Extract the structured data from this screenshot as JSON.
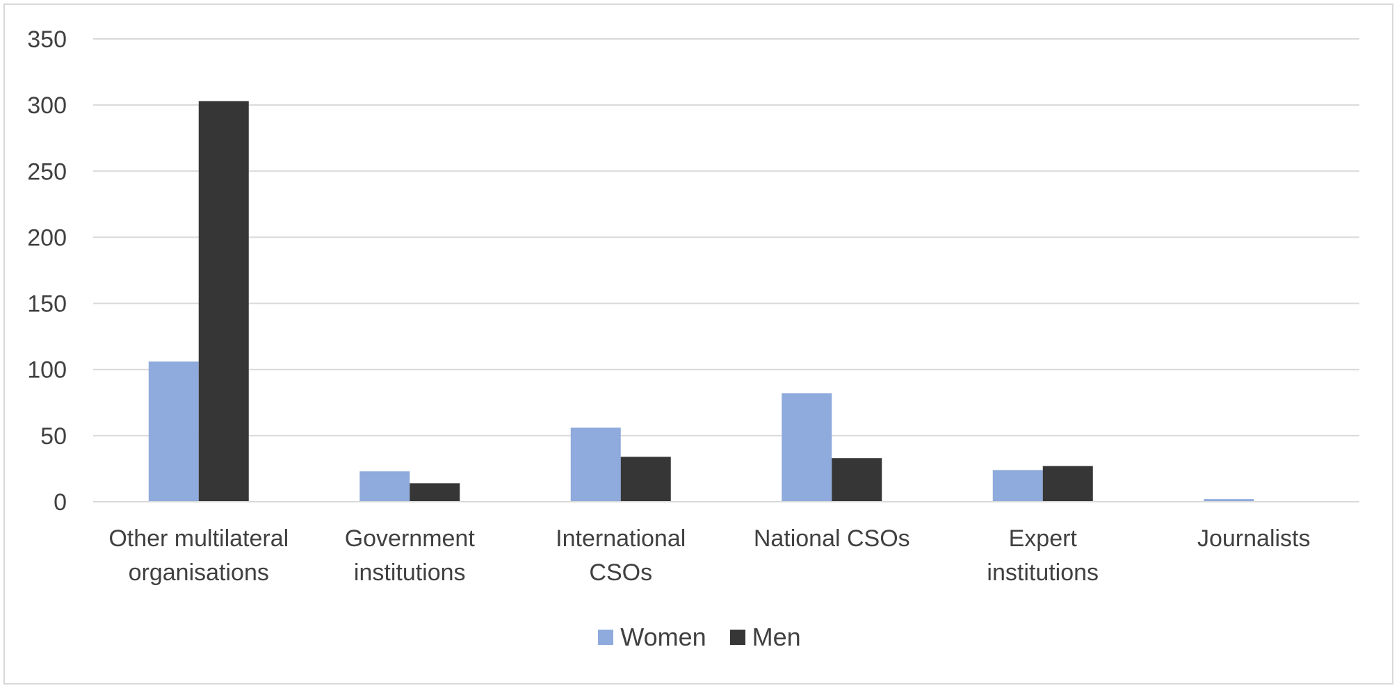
{
  "chart_data": {
    "type": "bar",
    "categories": [
      [
        "Other multilateral",
        "organisations"
      ],
      [
        "Government",
        "institutions"
      ],
      [
        "International",
        "CSOs"
      ],
      [
        "National CSOs"
      ],
      [
        "Expert",
        "institutions"
      ],
      [
        "Journalists"
      ]
    ],
    "series": [
      {
        "name": "Women",
        "color": "#8faadc",
        "values": [
          106,
          23,
          56,
          82,
          24,
          2
        ]
      },
      {
        "name": "Men",
        "color": "#363636",
        "values": [
          303,
          14,
          34,
          33,
          27,
          0
        ]
      }
    ],
    "ylim": [
      0,
      350
    ],
    "yticks": [
      0,
      50,
      100,
      150,
      200,
      250,
      300,
      350
    ],
    "grid": true,
    "legend_position": "bottom"
  }
}
